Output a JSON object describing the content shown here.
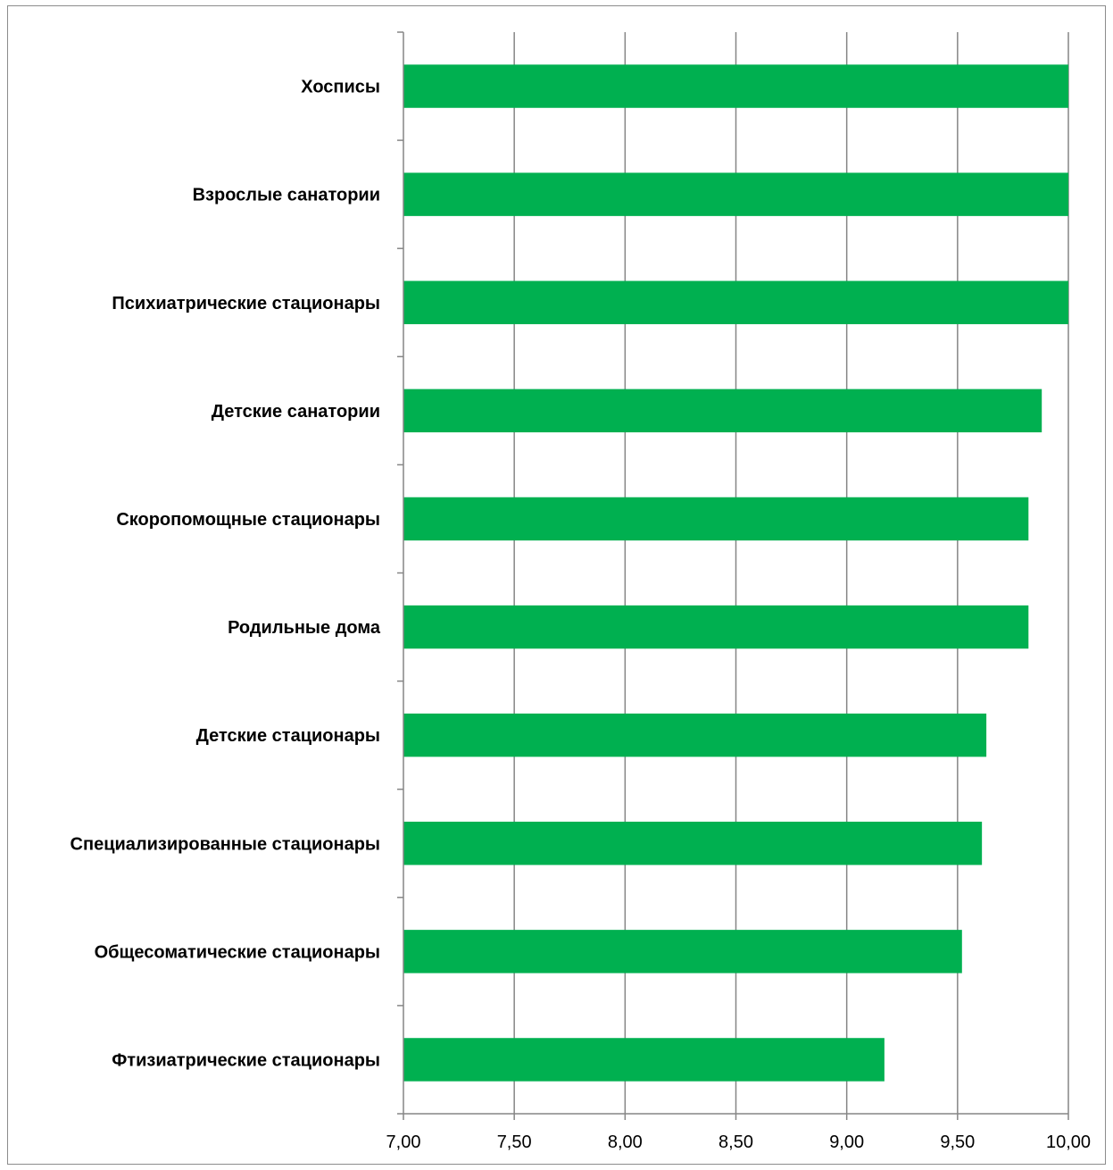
{
  "chart_data": {
    "type": "bar",
    "orientation": "horizontal",
    "categories": [
      "Хосписы",
      "Взрослые санатории",
      "Психиатрические стационары",
      "Детские санатории",
      "Скоропомощные стационары",
      "Родильные дома",
      "Детские стационары",
      "Специализированные стационары",
      "Общесоматические стационары",
      "Фтизиатрические стационары"
    ],
    "values": [
      10.0,
      10.0,
      10.0,
      9.88,
      9.82,
      9.82,
      9.63,
      9.61,
      9.52,
      9.17
    ],
    "xlim": [
      7.0,
      10.0
    ],
    "x_ticks": [
      7.0,
      7.5,
      8.0,
      8.5,
      9.0,
      9.5,
      10.0
    ],
    "x_tick_labels": [
      "7,00",
      "7,50",
      "8,00",
      "8,50",
      "9,00",
      "9,50",
      "10,00"
    ],
    "grid": "vertical",
    "legend": "none",
    "title": "",
    "xlabel": "",
    "ylabel": "",
    "bar_color": "#00b050",
    "grid_color": "#868686"
  }
}
